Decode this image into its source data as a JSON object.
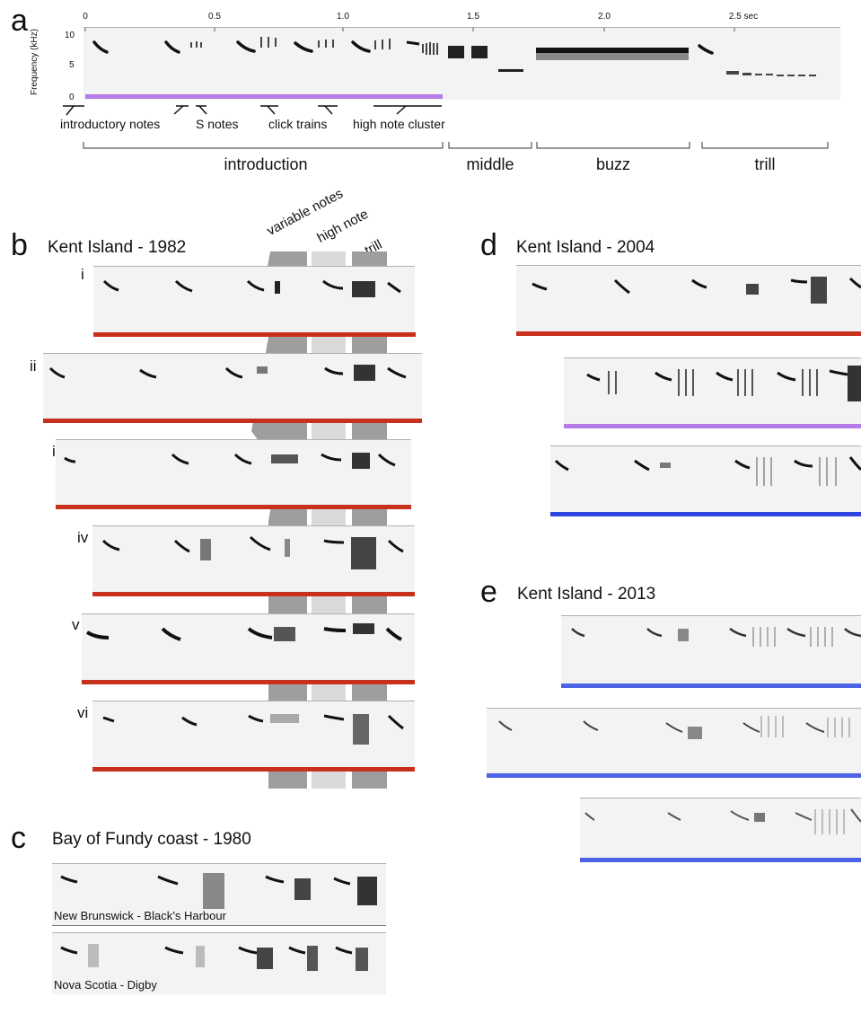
{
  "panel_a": {
    "letter": "a",
    "y_axis_label": "Frequency (kHz)",
    "y_ticks": [
      "10",
      "5",
      "0"
    ],
    "x_ticks": [
      "0",
      "0.5",
      "1.0",
      "1.5",
      "2.0",
      "2.5 sec"
    ],
    "annotations": [
      "introductory notes",
      "S notes",
      "click trains",
      "high note cluster"
    ],
    "sections": [
      "introduction",
      "middle",
      "buzz",
      "trill"
    ]
  },
  "panel_b": {
    "letter": "b",
    "title": "Kent Island - 1982",
    "column_labels": [
      "variable notes",
      "high note",
      "trill"
    ],
    "rows": [
      "i",
      "ii",
      "iii",
      "iv",
      "v",
      "vi"
    ]
  },
  "panel_c": {
    "letter": "c",
    "title": "Bay of Fundy coast - 1980",
    "rows": [
      "New Brunswick - Black’s Harbour",
      "Nova Scotia - Digby"
    ]
  },
  "panel_d": {
    "letter": "d",
    "title": "Kent Island - 2004"
  },
  "panel_e": {
    "letter": "e",
    "title": "Kent Island - 2013"
  },
  "colors": {
    "red": "#c8301e",
    "purple": "#b57be6",
    "blue": "#2f45e0",
    "blue_light": "#4d63e6",
    "gray_band": "#9e9e9e",
    "gray_band_light": "#dadada"
  }
}
